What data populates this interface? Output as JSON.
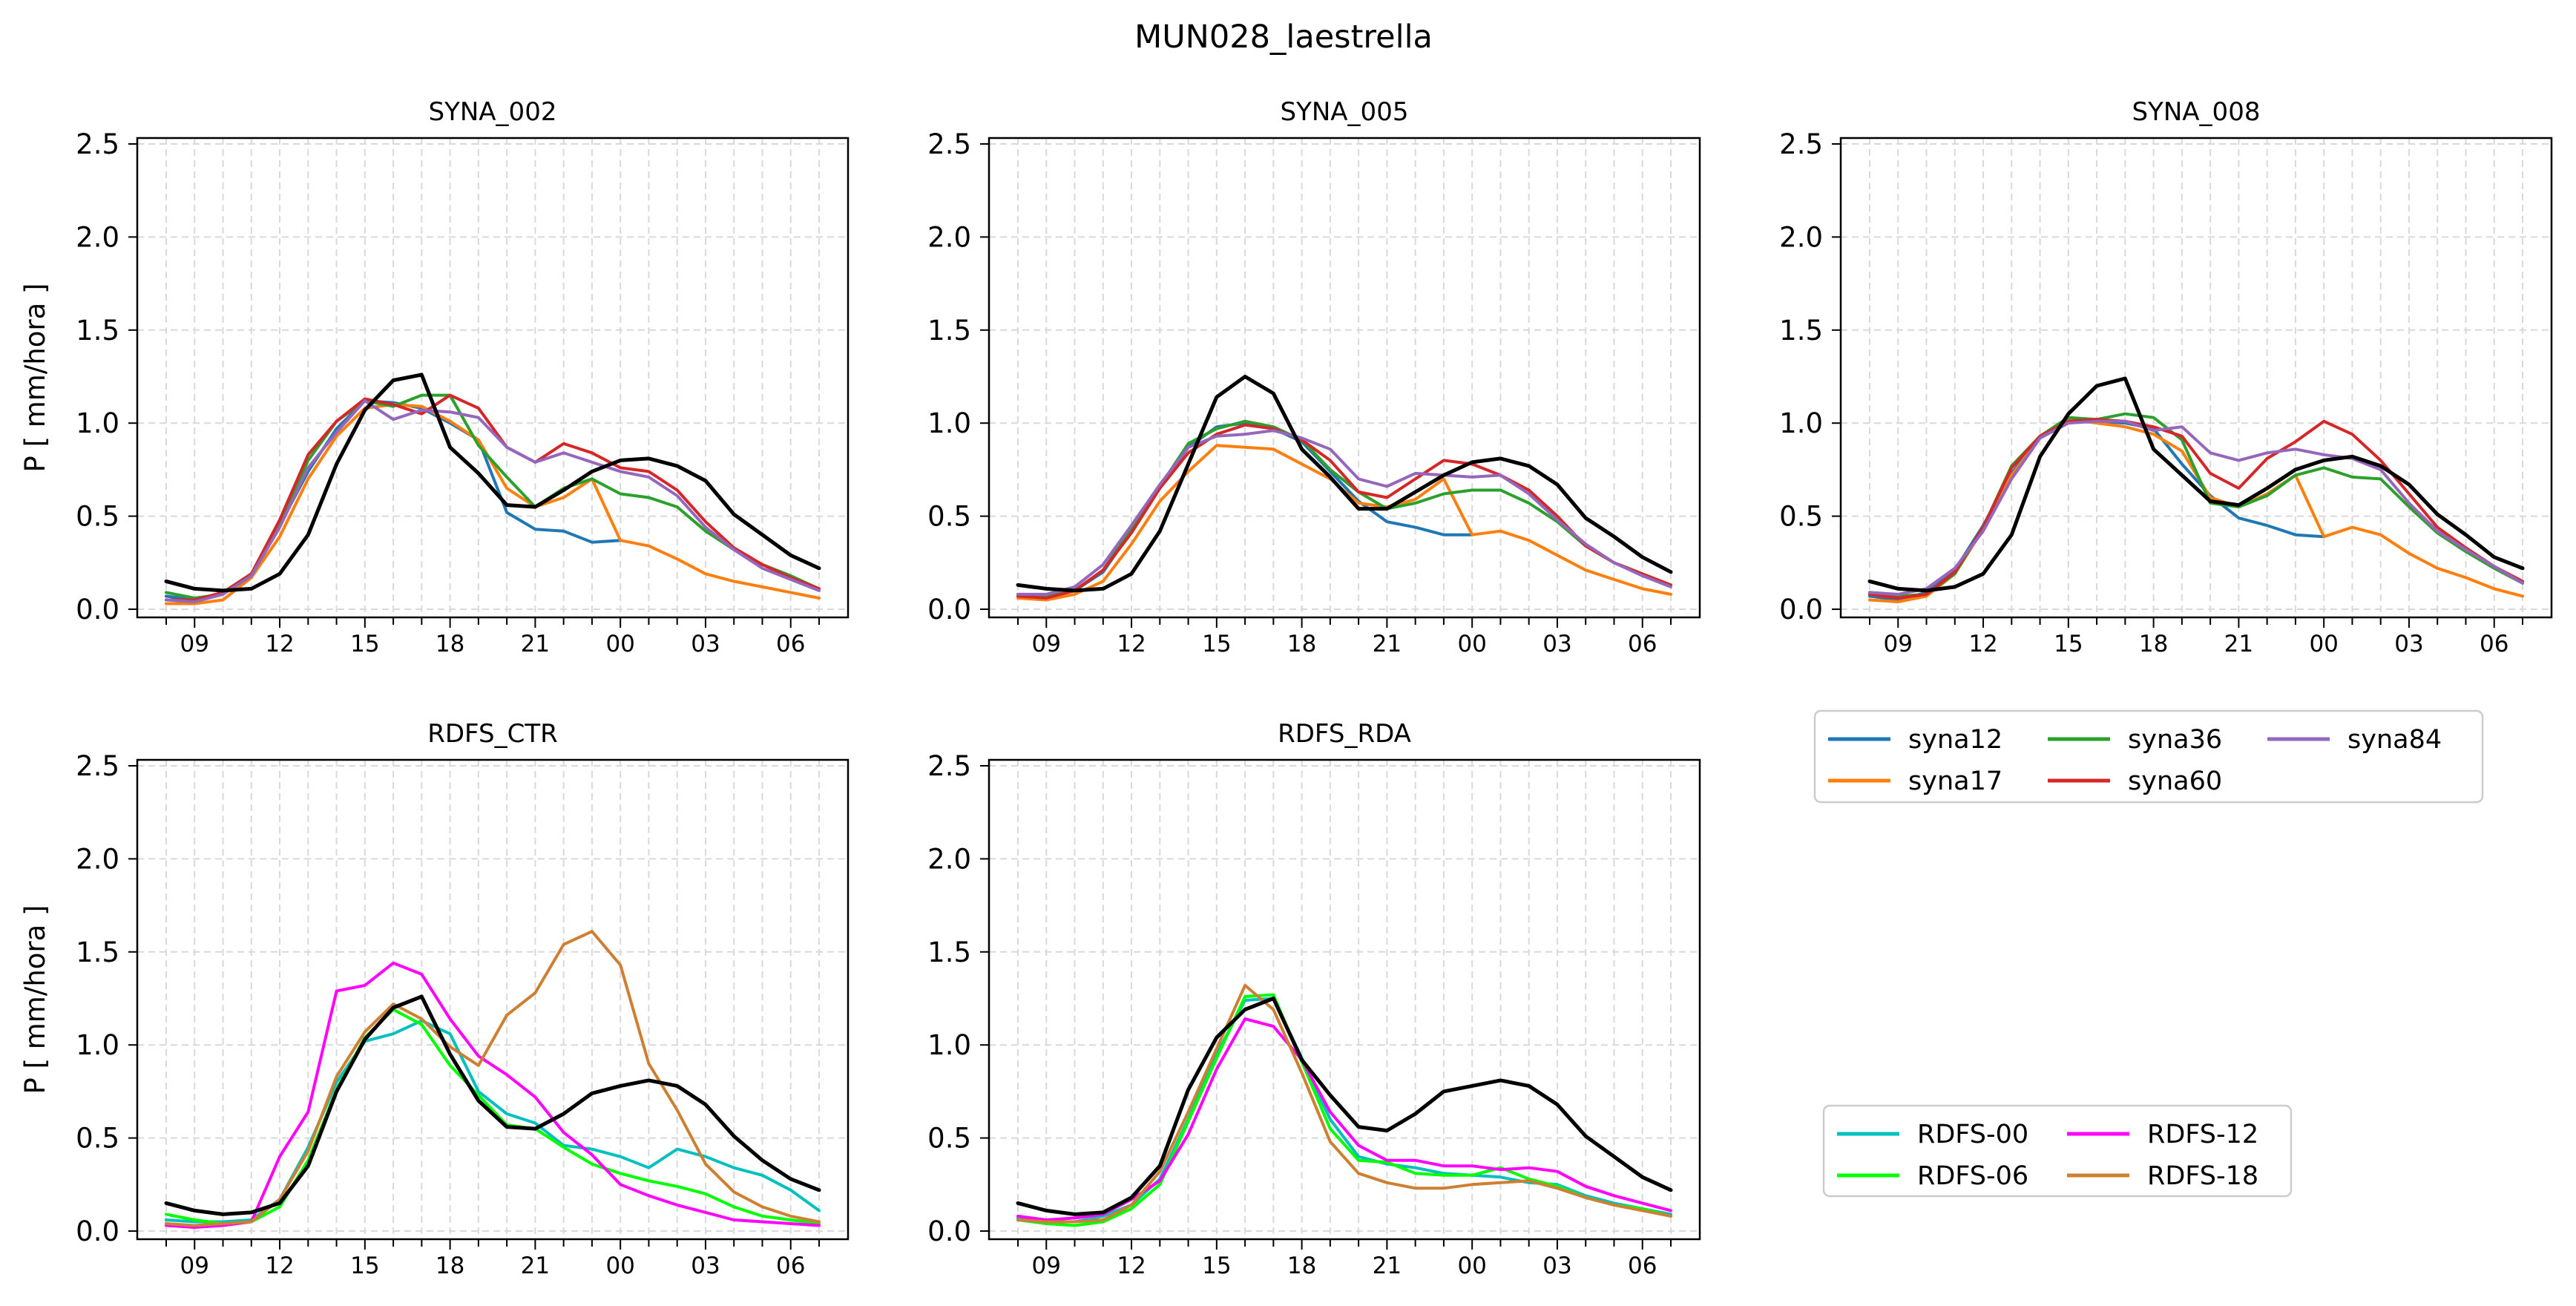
{
  "figure": {
    "title": "MUN028_laestrella"
  },
  "colors": {
    "observed": "#000000",
    "syna12": "#1f77b4",
    "syna17": "#ff7f0e",
    "syna36": "#2ca02c",
    "syna60": "#d62728",
    "syna84": "#9467bd",
    "RDFS-00": "#00bfbf",
    "RDFS-06": "#00ff00",
    "RDFS-12": "#ff00ff",
    "RDFS-18": "#cd7f32"
  },
  "legends": {
    "syna": [
      "syna12",
      "syna17",
      "syna36",
      "syna60",
      "syna84"
    ],
    "rdfs": [
      "RDFS-00",
      "RDFS-06",
      "RDFS-12",
      "RDFS-18"
    ]
  },
  "chart_data": [
    {
      "type": "line",
      "title": "SYNA_002",
      "ylabel": "P [ mm/hora ]",
      "xlabel": "",
      "ylim": [
        0,
        2.5
      ],
      "yticks": [
        "0.0",
        "0.5",
        "1.0",
        "1.5",
        "2.0",
        "2.5"
      ],
      "x": [
        "08",
        "09",
        "10",
        "11",
        "12",
        "13",
        "14",
        "15",
        "16",
        "17",
        "18",
        "19",
        "20",
        "21",
        "22",
        "23",
        "00",
        "01",
        "02",
        "03",
        "04",
        "05",
        "06",
        "07"
      ],
      "xticklabels": [
        "09",
        "12",
        "15",
        "18",
        "21",
        "00",
        "03",
        "06"
      ],
      "grid": true,
      "series": [
        {
          "name": "syna12",
          "values": [
            0.07,
            0.05,
            0.09,
            0.19,
            0.45,
            0.74,
            0.97,
            1.12,
            1.11,
            1.08,
            1.0,
            0.91,
            0.52,
            0.43,
            0.42,
            0.36,
            0.37,
            null,
            null,
            null,
            null,
            null,
            null,
            null
          ]
        },
        {
          "name": "syna17",
          "values": [
            0.03,
            0.03,
            0.05,
            0.17,
            0.39,
            0.7,
            0.93,
            1.08,
            1.1,
            1.09,
            1.01,
            0.91,
            0.65,
            0.55,
            0.6,
            0.7,
            0.37,
            0.34,
            0.27,
            0.19,
            0.15,
            0.12,
            0.09,
            0.06
          ]
        },
        {
          "name": "syna36",
          "values": [
            0.09,
            0.06,
            0.08,
            0.19,
            0.46,
            0.8,
            1.01,
            1.12,
            1.09,
            1.15,
            1.15,
            0.88,
            0.71,
            0.55,
            0.65,
            0.7,
            0.62,
            0.6,
            0.55,
            0.42,
            0.32,
            0.24,
            0.18,
            0.11
          ]
        },
        {
          "name": "syna60",
          "values": [
            0.05,
            0.05,
            0.09,
            0.19,
            0.48,
            0.83,
            1.01,
            1.13,
            1.1,
            1.05,
            1.15,
            1.08,
            0.87,
            0.79,
            0.89,
            0.84,
            0.76,
            0.74,
            0.64,
            0.47,
            0.33,
            0.24,
            0.17,
            0.11
          ]
        },
        {
          "name": "syna84",
          "values": [
            0.05,
            0.04,
            0.08,
            0.18,
            0.44,
            0.76,
            0.95,
            1.12,
            1.02,
            1.07,
            1.06,
            1.03,
            0.87,
            0.79,
            0.84,
            0.79,
            0.74,
            0.71,
            0.61,
            0.44,
            0.32,
            0.22,
            0.16,
            0.1
          ]
        },
        {
          "name": "observed",
          "values": [
            0.15,
            0.11,
            0.1,
            0.11,
            0.19,
            0.4,
            0.78,
            1.07,
            1.23,
            1.26,
            0.87,
            0.73,
            0.56,
            0.55,
            0.64,
            0.74,
            0.8,
            0.81,
            0.77,
            0.69,
            0.51,
            0.4,
            0.29,
            0.22
          ]
        }
      ]
    },
    {
      "type": "line",
      "title": "SYNA_005",
      "ylabel": "",
      "xlabel": "",
      "ylim": [
        0,
        2.5
      ],
      "yticks": [
        "0.0",
        "0.5",
        "1.0",
        "1.5",
        "2.0",
        "2.5"
      ],
      "x": [
        "08",
        "09",
        "10",
        "11",
        "12",
        "13",
        "14",
        "15",
        "16",
        "17",
        "18",
        "19",
        "20",
        "21",
        "22",
        "23",
        "00",
        "01",
        "02",
        "03",
        "04",
        "05",
        "06",
        "07"
      ],
      "xticklabels": [
        "09",
        "12",
        "15",
        "18",
        "21",
        "00",
        "03",
        "06"
      ],
      "grid": true,
      "series": [
        {
          "name": "syna12",
          "values": [
            0.07,
            0.06,
            0.1,
            0.2,
            0.42,
            0.66,
            0.87,
            0.98,
            1.0,
            0.97,
            0.9,
            0.74,
            0.58,
            0.47,
            0.44,
            0.4,
            0.4,
            null,
            null,
            null,
            null,
            null,
            null,
            null
          ]
        },
        {
          "name": "syna17",
          "values": [
            0.06,
            0.05,
            0.08,
            0.15,
            0.35,
            0.58,
            0.74,
            0.88,
            0.87,
            0.86,
            0.78,
            0.7,
            0.57,
            0.55,
            0.59,
            0.7,
            0.4,
            0.42,
            0.37,
            0.29,
            0.21,
            0.16,
            0.11,
            0.08
          ]
        },
        {
          "name": "syna36",
          "values": [
            0.08,
            0.07,
            0.1,
            0.21,
            0.43,
            0.66,
            0.89,
            0.97,
            1.01,
            0.98,
            0.91,
            0.75,
            0.63,
            0.54,
            0.57,
            0.62,
            0.64,
            0.64,
            0.57,
            0.47,
            0.34,
            0.25,
            0.19,
            0.13
          ]
        },
        {
          "name": "syna60",
          "values": [
            0.07,
            0.06,
            0.1,
            0.21,
            0.41,
            0.65,
            0.84,
            0.94,
            0.99,
            0.97,
            0.91,
            0.8,
            0.63,
            0.6,
            0.7,
            0.8,
            0.78,
            0.72,
            0.64,
            0.5,
            0.34,
            0.25,
            0.19,
            0.13
          ]
        },
        {
          "name": "syna84",
          "values": [
            0.08,
            0.08,
            0.12,
            0.24,
            0.45,
            0.67,
            0.87,
            0.93,
            0.94,
            0.96,
            0.92,
            0.86,
            0.7,
            0.66,
            0.73,
            0.72,
            0.71,
            0.72,
            0.62,
            0.48,
            0.35,
            0.25,
            0.18,
            0.12
          ]
        },
        {
          "name": "observed",
          "values": [
            0.13,
            0.11,
            0.1,
            0.11,
            0.19,
            0.42,
            0.78,
            1.14,
            1.25,
            1.16,
            0.86,
            0.71,
            0.54,
            0.54,
            0.63,
            0.72,
            0.79,
            0.81,
            0.77,
            0.67,
            0.49,
            0.39,
            0.28,
            0.2
          ]
        }
      ]
    },
    {
      "type": "line",
      "title": "SYNA_008",
      "ylabel": "",
      "xlabel": "",
      "ylim": [
        0,
        2.5
      ],
      "yticks": [
        "0.0",
        "0.5",
        "1.0",
        "1.5",
        "2.0",
        "2.5"
      ],
      "x": [
        "08",
        "09",
        "10",
        "11",
        "12",
        "13",
        "14",
        "15",
        "16",
        "17",
        "18",
        "19",
        "20",
        "21",
        "22",
        "23",
        "00",
        "01",
        "02",
        "03",
        "04",
        "05",
        "06",
        "07"
      ],
      "xticklabels": [
        "09",
        "12",
        "15",
        "18",
        "21",
        "00",
        "03",
        "06"
      ],
      "grid": true,
      "series": [
        {
          "name": "syna12",
          "values": [
            0.07,
            0.05,
            0.09,
            0.21,
            0.45,
            0.73,
            0.93,
            1.02,
            1.01,
            1.0,
            0.97,
            0.78,
            0.61,
            0.49,
            0.45,
            0.4,
            0.39,
            null,
            null,
            null,
            null,
            null,
            null,
            null
          ]
        },
        {
          "name": "syna17",
          "values": [
            0.05,
            0.04,
            0.07,
            0.19,
            0.43,
            0.72,
            0.92,
            1.02,
            1.0,
            0.98,
            0.94,
            0.85,
            0.6,
            0.55,
            0.62,
            0.72,
            0.39,
            0.44,
            0.4,
            0.3,
            0.22,
            0.17,
            0.11,
            0.07
          ]
        },
        {
          "name": "syna36",
          "values": [
            0.09,
            0.07,
            0.08,
            0.19,
            0.44,
            0.77,
            0.93,
            1.03,
            1.02,
            1.05,
            1.03,
            0.91,
            0.57,
            0.55,
            0.61,
            0.72,
            0.76,
            0.71,
            0.7,
            0.55,
            0.41,
            0.31,
            0.22,
            0.14
          ]
        },
        {
          "name": "syna60",
          "values": [
            0.08,
            0.06,
            0.08,
            0.2,
            0.44,
            0.76,
            0.93,
            1.01,
            1.02,
            1.01,
            0.98,
            0.93,
            0.73,
            0.65,
            0.81,
            0.9,
            1.01,
            0.94,
            0.8,
            0.62,
            0.44,
            0.33,
            0.23,
            0.15
          ]
        },
        {
          "name": "syna84",
          "values": [
            0.09,
            0.08,
            0.11,
            0.22,
            0.42,
            0.7,
            0.92,
            1.0,
            1.01,
            1.01,
            0.96,
            0.98,
            0.84,
            0.8,
            0.84,
            0.86,
            0.83,
            0.81,
            0.75,
            0.57,
            0.42,
            0.32,
            0.23,
            0.14
          ]
        },
        {
          "name": "observed",
          "values": [
            0.15,
            0.11,
            0.1,
            0.12,
            0.19,
            0.4,
            0.82,
            1.05,
            1.2,
            1.24,
            0.86,
            0.72,
            0.58,
            0.56,
            0.65,
            0.75,
            0.8,
            0.82,
            0.77,
            0.67,
            0.51,
            0.4,
            0.28,
            0.22
          ]
        }
      ]
    },
    {
      "type": "line",
      "title": "RDFS_CTR",
      "ylabel": "P [ mm/hora ]",
      "xlabel": "",
      "ylim": [
        0,
        2.5
      ],
      "yticks": [
        "0.0",
        "0.5",
        "1.0",
        "1.5",
        "2.0",
        "2.5"
      ],
      "x": [
        "08",
        "09",
        "10",
        "11",
        "12",
        "13",
        "14",
        "15",
        "16",
        "17",
        "18",
        "19",
        "20",
        "21",
        "22",
        "23",
        "00",
        "01",
        "02",
        "03",
        "04",
        "05",
        "06",
        "07"
      ],
      "xticklabels": [
        "09",
        "12",
        "15",
        "18",
        "21",
        "00",
        "03",
        "06"
      ],
      "grid": true,
      "series": [
        {
          "name": "RDFS-00",
          "values": [
            0.06,
            0.05,
            0.05,
            0.06,
            0.17,
            0.45,
            0.8,
            1.02,
            1.06,
            1.13,
            1.06,
            0.75,
            0.63,
            0.58,
            0.46,
            0.44,
            0.4,
            0.34,
            0.44,
            0.4,
            0.34,
            0.3,
            0.22,
            0.11
          ]
        },
        {
          "name": "RDFS-06",
          "values": [
            0.09,
            0.06,
            0.04,
            0.05,
            0.13,
            0.38,
            0.76,
            1.04,
            1.19,
            1.11,
            0.89,
            0.73,
            0.57,
            0.55,
            0.45,
            0.36,
            0.31,
            0.27,
            0.24,
            0.2,
            0.13,
            0.08,
            0.06,
            0.04
          ]
        },
        {
          "name": "RDFS-12",
          "values": [
            0.03,
            0.02,
            0.03,
            0.05,
            0.4,
            0.64,
            1.29,
            1.32,
            1.44,
            1.38,
            1.14,
            0.94,
            0.84,
            0.72,
            0.53,
            0.41,
            0.25,
            0.19,
            0.14,
            0.1,
            0.06,
            0.05,
            0.04,
            0.03
          ]
        },
        {
          "name": "RDFS-18",
          "values": [
            0.04,
            0.03,
            0.04,
            0.05,
            0.17,
            0.43,
            0.83,
            1.07,
            1.22,
            1.14,
            0.99,
            0.89,
            1.16,
            1.28,
            1.54,
            1.61,
            1.43,
            0.9,
            0.65,
            0.36,
            0.21,
            0.13,
            0.08,
            0.05
          ]
        },
        {
          "name": "observed",
          "values": [
            0.15,
            0.11,
            0.09,
            0.1,
            0.15,
            0.35,
            0.75,
            1.03,
            1.2,
            1.26,
            0.95,
            0.7,
            0.56,
            0.55,
            0.63,
            0.74,
            0.78,
            0.81,
            0.78,
            0.68,
            0.51,
            0.38,
            0.28,
            0.22
          ]
        }
      ]
    },
    {
      "type": "line",
      "title": "RDFS_RDA",
      "ylabel": "",
      "xlabel": "",
      "ylim": [
        0,
        2.5
      ],
      "yticks": [
        "0.0",
        "0.5",
        "1.0",
        "1.5",
        "2.0",
        "2.5"
      ],
      "x": [
        "08",
        "09",
        "10",
        "11",
        "12",
        "13",
        "14",
        "15",
        "16",
        "17",
        "18",
        "19",
        "20",
        "21",
        "22",
        "23",
        "00",
        "01",
        "02",
        "03",
        "04",
        "05",
        "06",
        "07"
      ],
      "xticklabels": [
        "09",
        "12",
        "15",
        "18",
        "21",
        "00",
        "03",
        "06"
      ],
      "grid": true,
      "series": [
        {
          "name": "RDFS-00",
          "values": [
            0.07,
            0.05,
            0.05,
            0.08,
            0.14,
            0.28,
            0.6,
            0.95,
            1.24,
            1.25,
            0.93,
            0.6,
            0.4,
            0.36,
            0.34,
            0.31,
            0.3,
            0.29,
            0.26,
            0.25,
            0.19,
            0.15,
            0.12,
            0.09
          ]
        },
        {
          "name": "RDFS-06",
          "values": [
            0.06,
            0.04,
            0.03,
            0.05,
            0.12,
            0.25,
            0.59,
            0.93,
            1.26,
            1.27,
            0.91,
            0.55,
            0.38,
            0.37,
            0.31,
            0.3,
            0.3,
            0.34,
            0.28,
            0.24,
            0.18,
            0.14,
            0.12,
            0.08
          ]
        },
        {
          "name": "RDFS-12",
          "values": [
            0.08,
            0.06,
            0.07,
            0.09,
            0.17,
            0.27,
            0.52,
            0.87,
            1.14,
            1.1,
            0.92,
            0.64,
            0.46,
            0.38,
            0.38,
            0.35,
            0.35,
            0.33,
            0.34,
            0.32,
            0.24,
            0.19,
            0.15,
            0.11
          ]
        },
        {
          "name": "RDFS-18",
          "values": [
            0.06,
            0.05,
            0.05,
            0.06,
            0.14,
            0.32,
            0.64,
            0.98,
            1.32,
            1.19,
            0.85,
            0.48,
            0.31,
            0.26,
            0.23,
            0.23,
            0.25,
            0.26,
            0.27,
            0.23,
            0.18,
            0.14,
            0.11,
            0.08
          ]
        },
        {
          "name": "observed",
          "values": [
            0.15,
            0.11,
            0.09,
            0.1,
            0.18,
            0.35,
            0.76,
            1.04,
            1.19,
            1.25,
            0.92,
            0.73,
            0.56,
            0.54,
            0.63,
            0.75,
            0.78,
            0.81,
            0.78,
            0.68,
            0.51,
            0.4,
            0.29,
            0.22
          ]
        }
      ]
    }
  ]
}
